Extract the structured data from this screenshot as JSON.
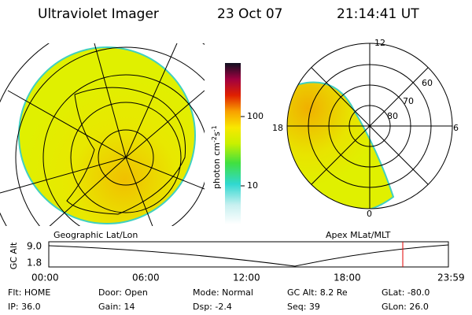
{
  "header": {
    "title": "Ultraviolet Imager",
    "date": "23 Oct 07",
    "time": "21:14:41 UT"
  },
  "colorbar": {
    "label": {
      "text": "photon cm",
      "exp1": "-2",
      "unit2": "s",
      "exp2": "-1"
    },
    "ticks": [
      "100",
      "10"
    ]
  },
  "left_panel": {
    "caption": "Geographic Lat/Lon"
  },
  "right_panel": {
    "caption": "Apex MLat/MLT",
    "mlt_labels": [
      "12",
      "18",
      "6",
      "0"
    ],
    "lat_labels": [
      "60",
      "70",
      "80"
    ]
  },
  "timeline": {
    "axis_label": "GC Alt",
    "y_labels": [
      "9.0",
      "1.8"
    ],
    "x_labels": [
      "00:00",
      "06:00",
      "12:00",
      "18:00",
      "23:59"
    ]
  },
  "footer": {
    "rows": [
      [
        "Flt: HOME",
        "Door: Open",
        "Mode: Normal",
        "GC Alt: 8.2 Re",
        "GLat: -80.0"
      ],
      [
        "IP: 36.0",
        "Gain: 14",
        "Dsp: -2.4",
        "Seq: 39",
        "GLon: 26.0"
      ]
    ]
  }
}
